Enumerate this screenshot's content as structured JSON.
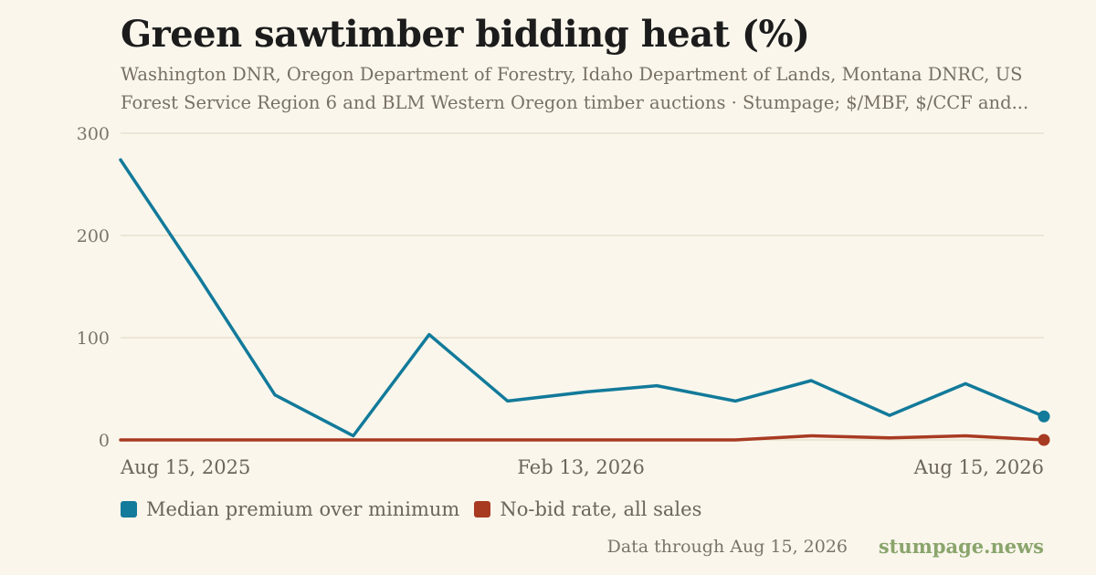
{
  "header": {
    "title": "Green sawtimber bidding heat (%)",
    "subtitle": "Washington DNR, Oregon Department of Forestry, Idaho Department of Lands, Montana DNRC, US Forest Service Region 6 and BLM Western Oregon timber auctions · Stumpage; $/MBF, $/CCF and..."
  },
  "footer": {
    "note": "Data through Aug 15, 2026",
    "brand": "stumpage.news"
  },
  "chart_data": {
    "type": "line",
    "title": "Green sawtimber bidding heat (%)",
    "xlabel": "",
    "ylabel": "",
    "ylim": [
      0,
      300
    ],
    "yticks": [
      0,
      100,
      200,
      300
    ],
    "xlim": [
      "2025-08-15",
      "2026-08-15"
    ],
    "xticks": [
      {
        "date": "2025-08-15",
        "label": "Aug 15, 2025"
      },
      {
        "date": "2026-02-13",
        "label": "Feb 13, 2026"
      },
      {
        "date": "2026-08-15",
        "label": "Aug 15, 2026"
      }
    ],
    "grid": true,
    "legend": "bottom-left",
    "x": [
      "2025-08-15",
      "2025-09-15",
      "2025-10-15",
      "2025-11-15",
      "2025-12-15",
      "2026-01-15",
      "2026-02-15",
      "2026-03-15",
      "2026-04-15",
      "2026-05-15",
      "2026-06-15",
      "2026-07-15",
      "2026-08-15"
    ],
    "series": [
      {
        "name": "Median premium over minimum",
        "color": "#127a9a",
        "values": [
          274,
          159,
          44,
          4,
          103,
          38,
          47,
          53,
          38,
          58,
          24,
          55,
          23
        ]
      },
      {
        "name": "No-bid rate, all sales",
        "color": "#a83a22",
        "values": [
          0,
          0,
          0,
          0,
          0,
          0,
          0,
          0,
          0,
          4,
          2,
          4,
          0
        ]
      }
    ]
  }
}
